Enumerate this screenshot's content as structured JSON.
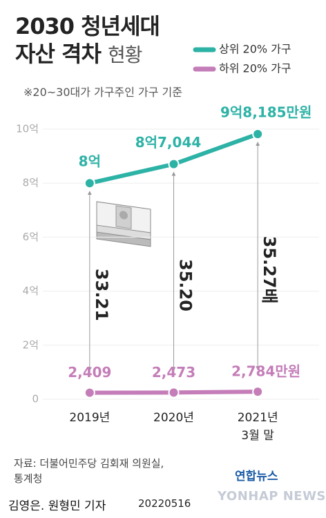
{
  "chart_data": {
    "type": "line",
    "title": "2030 청년세대\n자산 격차",
    "title_light": "현황",
    "subtitle": "※20~30대가 가구주인 가구 기준",
    "categories": [
      "2019년",
      "2020년",
      "2021년\n3월 말"
    ],
    "series": [
      {
        "name": "상위 20% 가구",
        "color": "#2db2a6",
        "values": [
          80000,
          87044,
          98185
        ],
        "value_labels": [
          "8억",
          "8억7,044",
          "9억8,185만원"
        ]
      },
      {
        "name": "하위 20% 가구",
        "color": "#c47db8",
        "values": [
          2409,
          2473,
          2784
        ],
        "value_labels": [
          "2,409",
          "2,473",
          "2,784만원"
        ]
      }
    ],
    "ratios": {
      "values": [
        33.21,
        35.2,
        35.27
      ],
      "value_labels": [
        "33.21",
        "35.20",
        "35.27배"
      ]
    },
    "ylim": [
      0,
      100000
    ],
    "yticks": [
      0,
      {
        "value": 20000,
        "label": "2억"
      },
      {
        "value": 40000,
        "label": "4억"
      },
      {
        "value": 60000,
        "label": "6억"
      },
      {
        "value": 80000,
        "label": "8억"
      },
      {
        "value": 100000,
        "label": "10억"
      }
    ],
    "grid": true,
    "legend": "top-right"
  },
  "source": "자료: 더불어민주당 김회재 의원실,\n통계청",
  "credit": "김영은. 원형민 기자",
  "date": "20220516",
  "logo": "연합뉴스",
  "watermark": "YONHAP NEWS"
}
